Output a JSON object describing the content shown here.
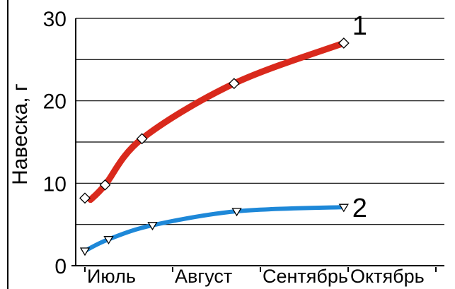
{
  "chart_data": {
    "type": "line",
    "ylabel": "Навеска, г",
    "xlabel": "",
    "title": "",
    "x_ticks": [
      "Июль",
      "Август",
      "Сентябрь",
      "Октябрь"
    ],
    "ylim": [
      0,
      30
    ],
    "y_ticks": [
      "0",
      "10",
      "20",
      "30"
    ],
    "grid": true,
    "series": [
      {
        "name": "1",
        "color": "#d9291c",
        "marker": "diamond",
        "points": [
          {
            "t": 0.0,
            "y": 8.2
          },
          {
            "t": 0.23,
            "y": 9.8
          },
          {
            "t": 0.65,
            "y": 15.4
          },
          {
            "t": 1.7,
            "y": 22.1
          },
          {
            "t": 2.95,
            "y": 27.0
          }
        ]
      },
      {
        "name": "2",
        "color": "#1e88d8",
        "marker": "triangle-down",
        "points": [
          {
            "t": 0.0,
            "y": 1.8
          },
          {
            "t": 0.27,
            "y": 3.2
          },
          {
            "t": 0.77,
            "y": 4.9
          },
          {
            "t": 1.73,
            "y": 6.6
          },
          {
            "t": 2.95,
            "y": 7.1
          }
        ]
      }
    ]
  }
}
